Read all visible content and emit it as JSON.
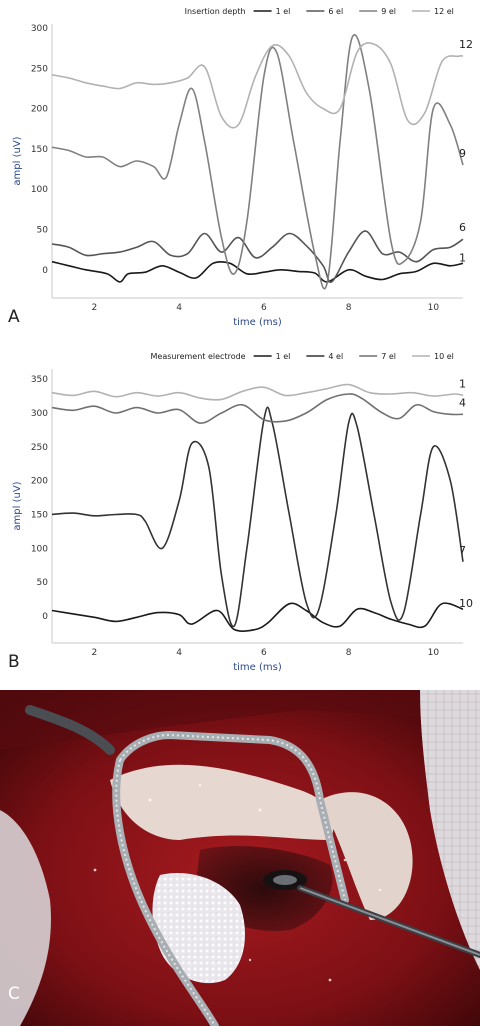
{
  "chart_data": [
    {
      "type": "line",
      "panel": "A",
      "legend_title": "Insertion depth",
      "xlabel": "time (ms)",
      "ylabel": "ampl (uV)",
      "xlim": [
        1,
        10.7
      ],
      "ylim": [
        -35,
        305
      ],
      "xticks": [
        "2",
        "4",
        "6",
        "8",
        "10"
      ],
      "yticks": [
        "0",
        "50",
        "100",
        "150",
        "200",
        "250",
        "300"
      ],
      "legend_position": "top-right",
      "grid": false,
      "series": [
        {
          "name": "1 el",
          "end_label": "1",
          "color": "#1a1a1a",
          "x": [
            1.0,
            1.4,
            1.8,
            2.3,
            2.6,
            2.8,
            3.2,
            3.6,
            4.0,
            4.4,
            4.8,
            5.2,
            5.6,
            6.0,
            6.4,
            6.8,
            7.2,
            7.5,
            8.0,
            8.4,
            8.8,
            9.2,
            9.6,
            10.0,
            10.4,
            10.7
          ],
          "y": [
            10,
            5,
            0,
            -5,
            -15,
            -5,
            -3,
            5,
            -3,
            -10,
            8,
            8,
            -5,
            -3,
            0,
            -2,
            -4,
            -15,
            0,
            -8,
            -12,
            -5,
            -2,
            8,
            5,
            8
          ]
        },
        {
          "name": "6 el",
          "end_label": "6",
          "color": "#555555",
          "x": [
            1.0,
            1.4,
            1.8,
            2.2,
            2.6,
            3.0,
            3.4,
            3.8,
            4.2,
            4.6,
            5.0,
            5.4,
            5.8,
            6.2,
            6.6,
            7.0,
            7.4,
            7.6,
            8.0,
            8.4,
            8.8,
            9.2,
            9.6,
            10.0,
            10.4,
            10.7
          ],
          "y": [
            32,
            28,
            18,
            20,
            22,
            28,
            35,
            18,
            20,
            45,
            22,
            40,
            15,
            28,
            45,
            30,
            5,
            -15,
            22,
            48,
            20,
            22,
            10,
            25,
            28,
            38
          ]
        },
        {
          "name": "9 el",
          "end_label": "9",
          "color": "#808080",
          "x": [
            1.0,
            1.4,
            1.8,
            2.2,
            2.6,
            3.0,
            3.4,
            3.7,
            4.0,
            4.3,
            4.6,
            5.0,
            5.3,
            5.6,
            6.0,
            6.3,
            6.7,
            7.2,
            7.5,
            7.8,
            8.1,
            8.5,
            9.0,
            9.3,
            9.7,
            10.0,
            10.4,
            10.7
          ],
          "y": [
            152,
            148,
            140,
            140,
            128,
            135,
            128,
            115,
            180,
            225,
            160,
            40,
            -5,
            60,
            240,
            270,
            160,
            20,
            -15,
            160,
            290,
            220,
            35,
            10,
            60,
            200,
            180,
            130
          ]
        },
        {
          "name": "12 el",
          "end_label": "12",
          "color": "#b2b2b2",
          "x": [
            1.0,
            1.4,
            1.8,
            2.2,
            2.6,
            3.0,
            3.4,
            3.8,
            4.2,
            4.6,
            5.0,
            5.4,
            5.8,
            6.2,
            6.6,
            7.0,
            7.4,
            7.8,
            8.2,
            8.6,
            9.0,
            9.4,
            9.8,
            10.2,
            10.6,
            10.7
          ],
          "y": [
            242,
            238,
            232,
            228,
            225,
            232,
            230,
            232,
            238,
            252,
            190,
            180,
            240,
            278,
            265,
            220,
            200,
            200,
            270,
            280,
            255,
            185,
            195,
            258,
            265,
            265
          ]
        }
      ]
    },
    {
      "type": "line",
      "panel": "B",
      "legend_title": "Measurement electrode",
      "xlabel": "time (ms)",
      "ylabel": "ampl (uV)",
      "xlim": [
        1,
        10.7
      ],
      "ylim": [
        -40,
        365
      ],
      "xticks": [
        "2",
        "4",
        "6",
        "8",
        "10"
      ],
      "yticks": [
        "0",
        "50",
        "100",
        "150",
        "200",
        "250",
        "300",
        "350"
      ],
      "legend_position": "top-right",
      "grid": false,
      "series": [
        {
          "name": "1 el",
          "end_label": "10",
          "color": "#1a1a1a",
          "x": [
            1.0,
            1.5,
            2.0,
            2.5,
            3.0,
            3.5,
            4.0,
            4.3,
            4.9,
            5.3,
            5.8,
            6.1,
            6.6,
            7.0,
            7.4,
            7.8,
            8.2,
            8.6,
            9.0,
            9.4,
            9.8,
            10.2,
            10.7
          ],
          "y": [
            8,
            3,
            -2,
            -8,
            -2,
            5,
            2,
            -12,
            8,
            -20,
            -20,
            -10,
            18,
            8,
            -10,
            -15,
            10,
            5,
            -5,
            -12,
            -15,
            18,
            10
          ]
        },
        {
          "name": "4 el",
          "end_label": "7",
          "color": "#333333",
          "x": [
            1.0,
            1.5,
            2.0,
            2.5,
            3.0,
            3.2,
            3.6,
            4.0,
            4.3,
            4.7,
            5.0,
            5.3,
            5.6,
            6.0,
            6.2,
            6.6,
            7.0,
            7.3,
            7.7,
            8.0,
            8.2,
            8.6,
            9.0,
            9.3,
            9.7,
            10.0,
            10.4,
            10.7
          ],
          "y": [
            150,
            152,
            148,
            150,
            150,
            140,
            100,
            170,
            255,
            220,
            60,
            -15,
            100,
            290,
            285,
            150,
            20,
            10,
            150,
            285,
            280,
            150,
            20,
            5,
            150,
            250,
            200,
            80
          ]
        },
        {
          "name": "7 el",
          "end_label": "4",
          "color": "#707070",
          "x": [
            1.0,
            1.5,
            2.0,
            2.5,
            3.0,
            3.5,
            4.0,
            4.5,
            5.0,
            5.5,
            6.0,
            6.5,
            7.0,
            7.5,
            8.0,
            8.3,
            8.8,
            9.2,
            9.6,
            10.0,
            10.4,
            10.7
          ],
          "y": [
            308,
            304,
            310,
            300,
            308,
            300,
            305,
            285,
            300,
            312,
            290,
            288,
            300,
            320,
            328,
            322,
            300,
            292,
            312,
            302,
            298,
            298
          ]
        },
        {
          "name": "10 el",
          "end_label": "1",
          "color": "#b2b2b2",
          "x": [
            1.0,
            1.5,
            2.0,
            2.5,
            3.0,
            3.5,
            4.0,
            4.5,
            5.0,
            5.5,
            6.0,
            6.5,
            7.0,
            7.5,
            8.0,
            8.5,
            9.0,
            9.5,
            10.0,
            10.5,
            10.7
          ],
          "y": [
            330,
            326,
            332,
            324,
            330,
            325,
            330,
            322,
            320,
            332,
            338,
            326,
            330,
            336,
            342,
            330,
            328,
            330,
            325,
            328,
            326
          ]
        }
      ]
    }
  ],
  "panels": {
    "a": "A",
    "b": "B",
    "c": "C"
  },
  "photo": {
    "description_colors": {
      "tissue": "#8a1418",
      "bone": "#e8ddd6",
      "dark": "#2a0608",
      "instrument": "#a9aeb3"
    }
  }
}
